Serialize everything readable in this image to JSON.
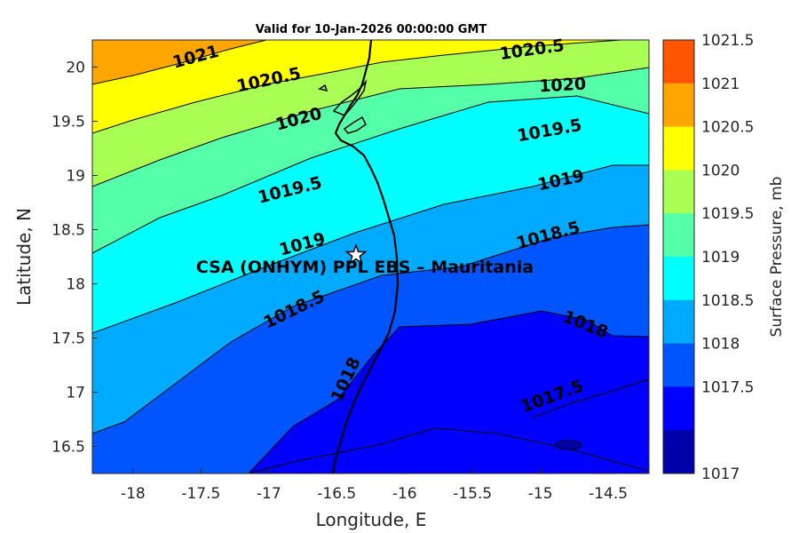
{
  "chart_data": {
    "type": "contour",
    "title": "Valid for 10-Jan-2026 00:00:00 GMT",
    "xlabel": "Longitude, E",
    "ylabel": "Latitude, N",
    "xlim": [
      -18.3,
      -14.2
    ],
    "ylim": [
      16.25,
      20.25
    ],
    "x_ticks": [
      "-18",
      "-17.5",
      "-17",
      "-16.5",
      "-16",
      "-15.5",
      "-15",
      "-14.5"
    ],
    "y_ticks": [
      "20",
      "19.5",
      "19",
      "18.5",
      "18",
      "17.5",
      "17",
      "16.5"
    ],
    "colorbar": {
      "label": "Surface Pressure, mb",
      "levels": [
        "1021.5",
        "1021",
        "1020.5",
        "1020",
        "1019.5",
        "1019",
        "1018.5",
        "1018",
        "1017.5",
        "1017"
      ],
      "colors": [
        "#ff5500",
        "#ffa500",
        "#ffff00",
        "#aaff55",
        "#55ffaa",
        "#00ffff",
        "#00aaff",
        "#0055ff",
        "#0000ff",
        "#0000aa"
      ]
    },
    "contour_labels": [
      "1021",
      "1020.5",
      "1020.5",
      "1020",
      "1020",
      "1019.5",
      "1019.5",
      "1019",
      "1019",
      "1018.5",
      "1018.5",
      "1018",
      "1018",
      "1017.5"
    ],
    "site": {
      "label": "CSA (ONHYM) PPL EBS  – Mauritania",
      "lon": -16.33,
      "lat": 18.28
    }
  }
}
